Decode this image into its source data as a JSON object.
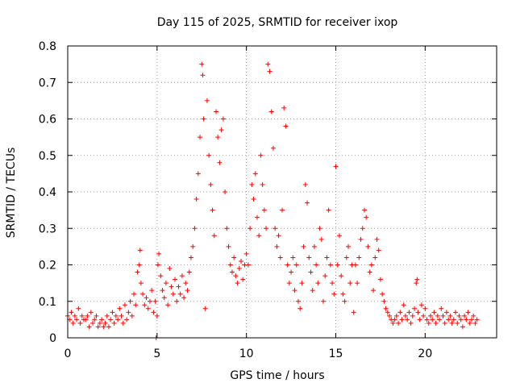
{
  "chart_data": {
    "type": "scatter",
    "title": "Day 115 of 2025, SRMTID for receiver ixop",
    "xlabel": "GPS time / hours",
    "ylabel": "SRMTID / TECUs",
    "xlim": [
      0,
      24
    ],
    "ylim": [
      0,
      0.8
    ],
    "xticks": [
      0,
      5,
      10,
      15,
      20
    ],
    "yticks": [
      0,
      0.1,
      0.2,
      0.3,
      0.4,
      0.5,
      0.6,
      0.7,
      0.8
    ],
    "grid": true,
    "marker": "+",
    "color": "#ff0000",
    "series": [
      {
        "name": "SRMTID",
        "points": [
          [
            0.0,
            0.06
          ],
          [
            0.1,
            0.05
          ],
          [
            0.2,
            0.07
          ],
          [
            0.3,
            0.04
          ],
          [
            0.4,
            0.06
          ],
          [
            0.5,
            0.05
          ],
          [
            0.6,
            0.08
          ],
          [
            0.7,
            0.04
          ],
          [
            0.8,
            0.06
          ],
          [
            0.9,
            0.05
          ],
          [
            1.0,
            0.05
          ],
          [
            1.1,
            0.06
          ],
          [
            1.2,
            0.03
          ],
          [
            1.3,
            0.07
          ],
          [
            1.4,
            0.04
          ],
          [
            1.5,
            0.05
          ],
          [
            1.6,
            0.06
          ],
          [
            1.7,
            0.03
          ],
          [
            1.8,
            0.04
          ],
          [
            1.9,
            0.05
          ],
          [
            2.0,
            0.03
          ],
          [
            2.1,
            0.04
          ],
          [
            2.2,
            0.06
          ],
          [
            2.3,
            0.03
          ],
          [
            2.4,
            0.05
          ],
          [
            2.5,
            0.07
          ],
          [
            2.6,
            0.04
          ],
          [
            2.7,
            0.06
          ],
          [
            2.8,
            0.05
          ],
          [
            2.9,
            0.08
          ],
          [
            3.0,
            0.06
          ],
          [
            3.1,
            0.04
          ],
          [
            3.2,
            0.09
          ],
          [
            3.3,
            0.05
          ],
          [
            3.4,
            0.07
          ],
          [
            3.5,
            0.1
          ],
          [
            3.6,
            0.06
          ],
          [
            3.7,
            0.12
          ],
          [
            3.8,
            0.09
          ],
          [
            3.9,
            0.18
          ],
          [
            4.0,
            0.2
          ],
          [
            4.05,
            0.24
          ],
          [
            4.1,
            0.15
          ],
          [
            4.2,
            0.12
          ],
          [
            4.3,
            0.09
          ],
          [
            4.4,
            0.11
          ],
          [
            4.5,
            0.08
          ],
          [
            4.6,
            0.1
          ],
          [
            4.7,
            0.13
          ],
          [
            4.8,
            0.07
          ],
          [
            4.9,
            0.1
          ],
          [
            5.0,
            0.06
          ],
          [
            4.95,
            0.0
          ],
          [
            5.05,
            0.2
          ],
          [
            5.1,
            0.23
          ],
          [
            5.2,
            0.17
          ],
          [
            5.3,
            0.13
          ],
          [
            5.4,
            0.11
          ],
          [
            5.5,
            0.15
          ],
          [
            5.6,
            0.09
          ],
          [
            5.7,
            0.19
          ],
          [
            5.8,
            0.14
          ],
          [
            5.9,
            0.12
          ],
          [
            6.0,
            0.16
          ],
          [
            6.1,
            0.1
          ],
          [
            6.2,
            0.14
          ],
          [
            6.3,
            0.12
          ],
          [
            6.4,
            0.17
          ],
          [
            6.5,
            0.11
          ],
          [
            6.6,
            0.15
          ],
          [
            6.7,
            0.13
          ],
          [
            6.8,
            0.18
          ],
          [
            6.9,
            0.22
          ],
          [
            7.0,
            0.25
          ],
          [
            7.1,
            0.3
          ],
          [
            7.2,
            0.38
          ],
          [
            7.3,
            0.45
          ],
          [
            7.4,
            0.55
          ],
          [
            7.5,
            0.75
          ],
          [
            7.55,
            0.72
          ],
          [
            7.6,
            0.6
          ],
          [
            7.7,
            0.08
          ],
          [
            7.8,
            0.65
          ],
          [
            7.9,
            0.5
          ],
          [
            8.0,
            0.42
          ],
          [
            8.1,
            0.35
          ],
          [
            8.2,
            0.28
          ],
          [
            8.3,
            0.62
          ],
          [
            8.4,
            0.55
          ],
          [
            8.5,
            0.48
          ],
          [
            8.6,
            0.57
          ],
          [
            8.7,
            0.6
          ],
          [
            8.8,
            0.4
          ],
          [
            8.9,
            0.3
          ],
          [
            9.0,
            0.25
          ],
          [
            9.1,
            0.2
          ],
          [
            9.2,
            0.18
          ],
          [
            9.3,
            0.22
          ],
          [
            9.4,
            0.17
          ],
          [
            9.5,
            0.15
          ],
          [
            9.6,
            0.19
          ],
          [
            9.7,
            0.21
          ],
          [
            9.8,
            0.16
          ],
          [
            9.9,
            0.2
          ],
          [
            10.0,
            0.23
          ],
          [
            10.1,
            0.2
          ],
          [
            10.2,
            0.3
          ],
          [
            10.3,
            0.42
          ],
          [
            10.4,
            0.38
          ],
          [
            10.5,
            0.45
          ],
          [
            10.6,
            0.33
          ],
          [
            10.7,
            0.28
          ],
          [
            10.8,
            0.5
          ],
          [
            10.9,
            0.42
          ],
          [
            11.0,
            0.35
          ],
          [
            11.1,
            0.3
          ],
          [
            11.2,
            0.75
          ],
          [
            11.3,
            0.73
          ],
          [
            11.4,
            0.62
          ],
          [
            11.5,
            0.52
          ],
          [
            11.6,
            0.3
          ],
          [
            11.7,
            0.25
          ],
          [
            11.8,
            0.28
          ],
          [
            11.9,
            0.22
          ],
          [
            12.0,
            0.35
          ],
          [
            12.1,
            0.63
          ],
          [
            12.2,
            0.58
          ],
          [
            12.3,
            0.2
          ],
          [
            12.4,
            0.15
          ],
          [
            12.5,
            0.18
          ],
          [
            12.6,
            0.22
          ],
          [
            12.7,
            0.13
          ],
          [
            12.8,
            0.2
          ],
          [
            12.9,
            0.1
          ],
          [
            13.0,
            0.08
          ],
          [
            13.1,
            0.15
          ],
          [
            13.2,
            0.25
          ],
          [
            13.3,
            0.42
          ],
          [
            13.4,
            0.37
          ],
          [
            13.5,
            0.22
          ],
          [
            13.6,
            0.18
          ],
          [
            13.7,
            0.13
          ],
          [
            13.8,
            0.25
          ],
          [
            13.9,
            0.2
          ],
          [
            14.0,
            0.15
          ],
          [
            14.1,
            0.3
          ],
          [
            14.2,
            0.27
          ],
          [
            14.3,
            0.1
          ],
          [
            14.4,
            0.17
          ],
          [
            14.5,
            0.22
          ],
          [
            14.6,
            0.35
          ],
          [
            14.7,
            0.2
          ],
          [
            14.8,
            0.15
          ],
          [
            14.9,
            0.12
          ],
          [
            15.0,
            0.47
          ],
          [
            15.1,
            0.2
          ],
          [
            15.2,
            0.28
          ],
          [
            15.3,
            0.17
          ],
          [
            15.4,
            0.12
          ],
          [
            15.5,
            0.1
          ],
          [
            15.6,
            0.22
          ],
          [
            15.7,
            0.25
          ],
          [
            15.8,
            0.15
          ],
          [
            15.9,
            0.2
          ],
          [
            16.0,
            0.07
          ],
          [
            16.1,
            0.2
          ],
          [
            16.2,
            0.15
          ],
          [
            16.3,
            0.22
          ],
          [
            16.4,
            0.27
          ],
          [
            16.5,
            0.3
          ],
          [
            16.6,
            0.35
          ],
          [
            16.7,
            0.33
          ],
          [
            16.8,
            0.25
          ],
          [
            16.9,
            0.18
          ],
          [
            17.0,
            0.2
          ],
          [
            17.1,
            0.13
          ],
          [
            17.2,
            0.22
          ],
          [
            17.3,
            0.27
          ],
          [
            17.4,
            0.24
          ],
          [
            17.5,
            0.16
          ],
          [
            17.6,
            0.12
          ],
          [
            17.7,
            0.1
          ],
          [
            17.8,
            0.08
          ],
          [
            17.9,
            0.07
          ],
          [
            18.0,
            0.06
          ],
          [
            18.1,
            0.05
          ],
          [
            18.2,
            0.04
          ],
          [
            18.3,
            0.05
          ],
          [
            18.4,
            0.06
          ],
          [
            18.5,
            0.04
          ],
          [
            18.6,
            0.07
          ],
          [
            18.7,
            0.05
          ],
          [
            18.8,
            0.09
          ],
          [
            18.9,
            0.06
          ],
          [
            19.0,
            0.05
          ],
          [
            19.1,
            0.07
          ],
          [
            19.2,
            0.04
          ],
          [
            19.3,
            0.06
          ],
          [
            19.4,
            0.08
          ],
          [
            19.5,
            0.15
          ],
          [
            19.55,
            0.16
          ],
          [
            19.6,
            0.07
          ],
          [
            19.7,
            0.05
          ],
          [
            19.8,
            0.09
          ],
          [
            19.9,
            0.06
          ],
          [
            20.0,
            0.08
          ],
          [
            20.1,
            0.05
          ],
          [
            20.2,
            0.04
          ],
          [
            20.3,
            0.06
          ],
          [
            20.4,
            0.05
          ],
          [
            20.5,
            0.07
          ],
          [
            20.6,
            0.04
          ],
          [
            20.7,
            0.06
          ],
          [
            20.8,
            0.05
          ],
          [
            20.9,
            0.08
          ],
          [
            21.0,
            0.06
          ],
          [
            21.1,
            0.04
          ],
          [
            21.2,
            0.07
          ],
          [
            21.3,
            0.05
          ],
          [
            21.4,
            0.06
          ],
          [
            21.5,
            0.04
          ],
          [
            21.6,
            0.05
          ],
          [
            21.7,
            0.07
          ],
          [
            21.8,
            0.04
          ],
          [
            21.9,
            0.06
          ],
          [
            22.0,
            0.05
          ],
          [
            22.1,
            0.03
          ],
          [
            22.2,
            0.06
          ],
          [
            22.3,
            0.05
          ],
          [
            22.4,
            0.07
          ],
          [
            22.5,
            0.04
          ],
          [
            22.6,
            0.05
          ],
          [
            22.7,
            0.06
          ],
          [
            22.8,
            0.04
          ],
          [
            22.9,
            0.05
          ]
        ]
      }
    ]
  }
}
